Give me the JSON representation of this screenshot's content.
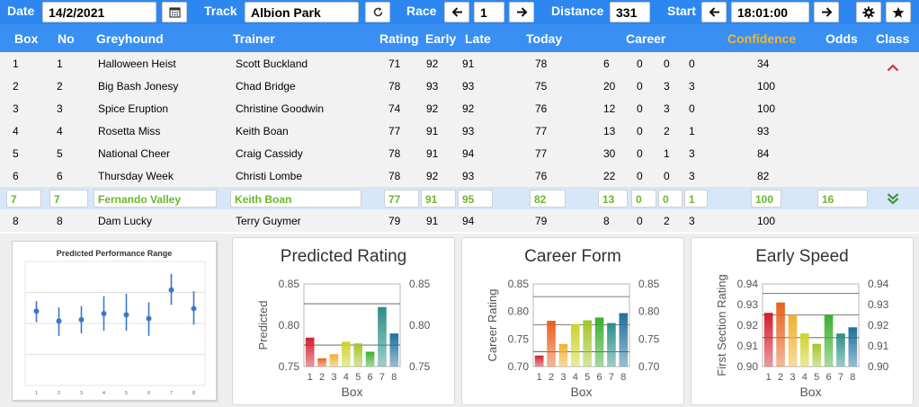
{
  "toolbar": {
    "date_label": "Date",
    "date_value": "14/2/2021",
    "track_label": "Track",
    "track_value": "Albion Park",
    "race_label": "Race",
    "race_value": "1",
    "distance_label": "Distance",
    "distance_value": "331",
    "start_label": "Start",
    "start_value": "18:01:00"
  },
  "columns": {
    "box": "Box",
    "no": "No",
    "greyhound": "Greyhound",
    "trainer": "Trainer",
    "rating": "Rating",
    "early": "Early",
    "late": "Late",
    "today": "Today",
    "career": "Career",
    "confidence": "Confidence",
    "odds": "Odds",
    "class": "Class"
  },
  "rows": [
    {
      "box": "1",
      "no": "1",
      "greyhound": "Halloween Heist",
      "trainer": "Scott Buckland",
      "rating": "71",
      "early": "92",
      "late": "91",
      "today": "78",
      "c1": "6",
      "c2": "0",
      "c3": "0",
      "c4": "0",
      "confidence": "34",
      "odds": ""
    },
    {
      "box": "2",
      "no": "2",
      "greyhound": "Big Bash Jonesy",
      "trainer": "Chad Bridge",
      "rating": "78",
      "early": "93",
      "late": "93",
      "today": "75",
      "c1": "20",
      "c2": "0",
      "c3": "3",
      "c4": "3",
      "confidence": "100",
      "odds": ""
    },
    {
      "box": "3",
      "no": "3",
      "greyhound": "Spice Eruption",
      "trainer": "Christine Goodwin",
      "rating": "74",
      "early": "92",
      "late": "92",
      "today": "76",
      "c1": "12",
      "c2": "0",
      "c3": "3",
      "c4": "0",
      "confidence": "100",
      "odds": ""
    },
    {
      "box": "4",
      "no": "4",
      "greyhound": "Rosetta Miss",
      "trainer": "Keith Boan",
      "rating": "77",
      "early": "91",
      "late": "93",
      "today": "77",
      "c1": "13",
      "c2": "0",
      "c3": "2",
      "c4": "1",
      "confidence": "93",
      "odds": ""
    },
    {
      "box": "5",
      "no": "5",
      "greyhound": "National Cheer",
      "trainer": "Craig Cassidy",
      "rating": "78",
      "early": "91",
      "late": "94",
      "today": "77",
      "c1": "30",
      "c2": "0",
      "c3": "1",
      "c4": "3",
      "confidence": "84",
      "odds": ""
    },
    {
      "box": "6",
      "no": "6",
      "greyhound": "Thursday Week",
      "trainer": "Christi Lombe",
      "rating": "78",
      "early": "92",
      "late": "93",
      "today": "76",
      "c1": "22",
      "c2": "0",
      "c3": "0",
      "c4": "3",
      "confidence": "82",
      "odds": ""
    },
    {
      "box": "7",
      "no": "7",
      "greyhound": "Fernando Valley",
      "trainer": "Keith Boan",
      "rating": "77",
      "early": "91",
      "late": "95",
      "today": "82",
      "c1": "13",
      "c2": "0",
      "c3": "0",
      "c4": "1",
      "confidence": "100",
      "odds": "16"
    },
    {
      "box": "8",
      "no": "8",
      "greyhound": "Dam Lucky",
      "trainer": "Terry Guymer",
      "rating": "79",
      "early": "91",
      "late": "94",
      "today": "79",
      "c1": "8",
      "c2": "0",
      "c3": "2",
      "c4": "3",
      "confidence": "100",
      "odds": ""
    }
  ],
  "icons": {
    "calendar": "calendar-icon",
    "refresh": "refresh-icon",
    "prev": "arrow-left-icon",
    "next": "arrow-right-icon",
    "settings": "gear-icon",
    "favorite": "star-icon",
    "class_up": "chevron-up-icon",
    "class_down": "double-chevron-down-icon"
  },
  "colors": {
    "toolbar": "#2d87f0",
    "header": "#3a8ff2",
    "confidence_header": "#f5b52a",
    "selected_text": "#6cb52c",
    "class_up": "#e03030",
    "class_down": "#3a9a3a"
  },
  "chart_data": [
    {
      "type": "scatter",
      "title": "Predicted Performance Range",
      "x": [
        "1",
        "2",
        "3",
        "4",
        "5",
        "6",
        "7",
        "8"
      ],
      "series": [
        {
          "center": [
            0.6,
            0.52,
            0.53,
            0.58,
            0.57,
            0.54,
            0.77,
            0.62
          ],
          "low": [
            0.51,
            0.4,
            0.42,
            0.44,
            0.44,
            0.4,
            0.65,
            0.49
          ],
          "high": [
            0.68,
            0.63,
            0.64,
            0.72,
            0.74,
            0.67,
            0.9,
            0.76
          ]
        }
      ]
    },
    {
      "type": "bar",
      "title": "Predicted Rating",
      "ylabel": "Predicted",
      "xlabel": "Box",
      "categories": [
        "1",
        "2",
        "3",
        "4",
        "5",
        "6",
        "7",
        "8"
      ],
      "values": [
        0.785,
        0.76,
        0.765,
        0.78,
        0.778,
        0.768,
        0.822,
        0.79
      ],
      "ylim": [
        0.75,
        0.85
      ],
      "yticks": [
        "0.75",
        "0.80",
        "0.85"
      ],
      "ref_lines": [
        0.826,
        0.776
      ],
      "colors": [
        "#d21f2e",
        "#e8601c",
        "#f0b030",
        "#cfd22a",
        "#a4c528",
        "#3bae2e",
        "#2b8f87",
        "#1f6f9c"
      ]
    },
    {
      "type": "bar",
      "title": "Career Form",
      "ylabel": "Career Rating",
      "xlabel": "Box",
      "categories": [
        "1",
        "2",
        "3",
        "4",
        "5",
        "6",
        "7",
        "8"
      ],
      "values": [
        0.72,
        0.783,
        0.741,
        0.777,
        0.784,
        0.789,
        0.779,
        0.797
      ],
      "ylim": [
        0.7,
        0.85
      ],
      "yticks": [
        "0.70",
        "0.75",
        "0.80",
        "0.85"
      ],
      "ref_lines": [
        0.827,
        0.776,
        0.727
      ],
      "colors": [
        "#d21f2e",
        "#e8601c",
        "#f0b030",
        "#cfd22a",
        "#a4c528",
        "#3bae2e",
        "#2b8f87",
        "#1f6f9c"
      ]
    },
    {
      "type": "bar",
      "title": "Early Speed",
      "ylabel": "First Section Rating",
      "xlabel": "Box",
      "categories": [
        "1",
        "2",
        "3",
        "4",
        "5",
        "6",
        "7",
        "8"
      ],
      "values": [
        0.926,
        0.931,
        0.925,
        0.916,
        0.911,
        0.925,
        0.916,
        0.919
      ],
      "ylim": [
        0.9,
        0.94
      ],
      "yticks": [
        "0.90",
        "0.91",
        "0.92",
        "0.93",
        "0.94"
      ],
      "ref_lines": [
        0.9355,
        0.925,
        0.914
      ],
      "colors": [
        "#d21f2e",
        "#e8601c",
        "#f0b030",
        "#cfd22a",
        "#a4c528",
        "#3bae2e",
        "#2b8f87",
        "#1f6f9c"
      ]
    }
  ]
}
